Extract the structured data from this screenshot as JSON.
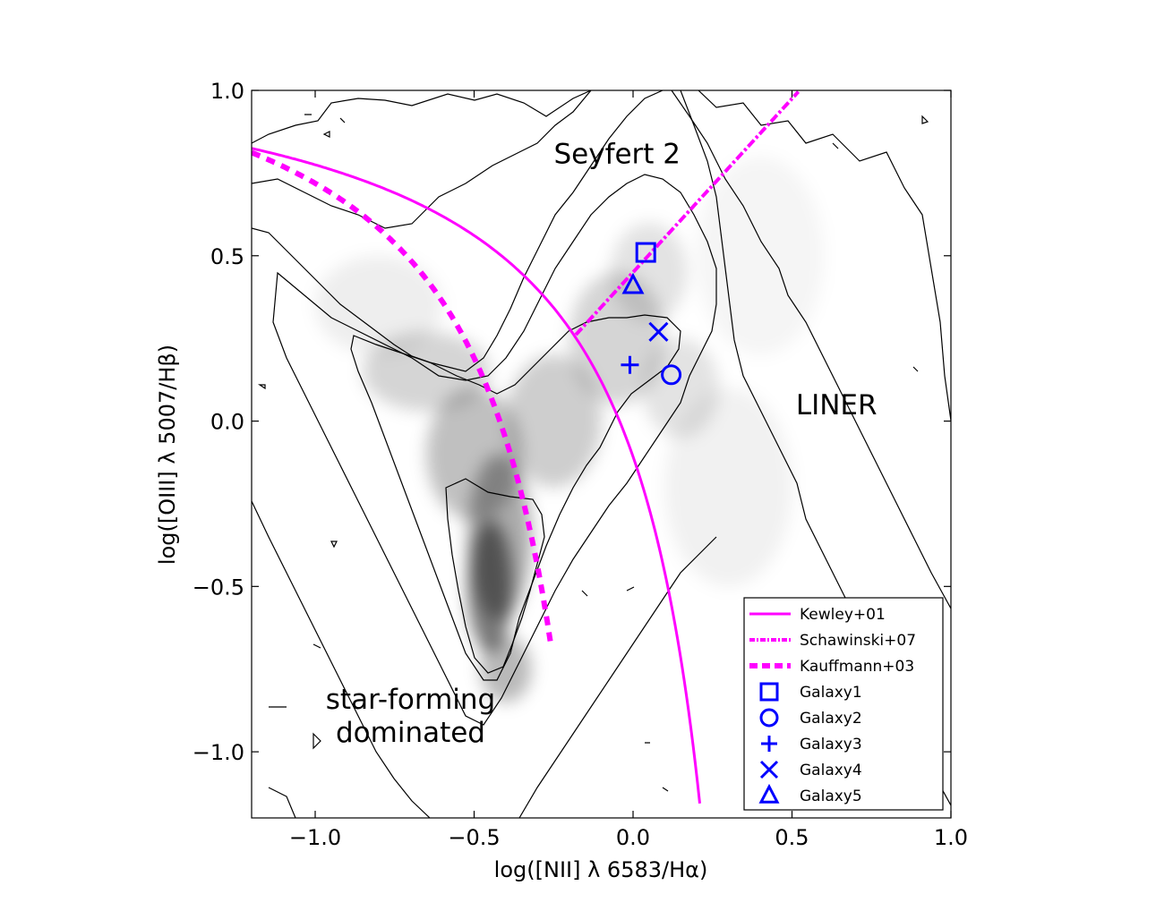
{
  "chart_data": {
    "type": "scatter",
    "xlabel": "log([NII] λ 6583/Hα)",
    "ylabel": "log([OIII] λ 5007/Hβ)",
    "xlim": [
      -1.2,
      1.0
    ],
    "ylim": [
      -1.2,
      1.0
    ],
    "x_ticks": [
      -1.0,
      -0.5,
      0.0,
      0.5,
      1.0
    ],
    "x_tick_labels": [
      "−1.0",
      "−0.5",
      "0.0",
      "0.5",
      "1.0"
    ],
    "y_ticks": [
      -1.0,
      -0.5,
      0.0,
      0.5,
      1.0
    ],
    "y_tick_labels": [
      "−1.0",
      "−0.5",
      "0.0",
      "0.5",
      "1.0"
    ],
    "grid": false,
    "background": "grayscale 2D density histogram with black contour lines",
    "region_labels": [
      {
        "text": "Seyfert 2",
        "x": -0.05,
        "y": 0.78
      },
      {
        "text": "LINER",
        "x": 0.64,
        "y": 0.02
      },
      {
        "text": "star-forming",
        "x": -0.7,
        "y": -0.87
      },
      {
        "text": "dominated",
        "x": -0.7,
        "y": -0.97
      }
    ],
    "curves": [
      {
        "name": "Kewley+01",
        "style": "solid",
        "color": "#ff00ff",
        "formula": "0.61/(x-0.47)+1.19",
        "x_range": [
          -1.2,
          0.21
        ]
      },
      {
        "name": "Schawinski+07",
        "style": "dash-dot",
        "color": "#ff00ff",
        "formula": "1.05*x+0.45",
        "x_range": [
          -0.18,
          0.52
        ]
      },
      {
        "name": "Kauffmann+03",
        "style": "dashed",
        "color": "#ff00ff",
        "formula": "0.61/(x-0.05)+1.3",
        "x_range": [
          -1.2,
          -0.26
        ]
      }
    ],
    "series": [
      {
        "name": "Galaxy1",
        "marker": "square",
        "color": "#0000ff",
        "x": 0.04,
        "y": 0.51
      },
      {
        "name": "Galaxy2",
        "marker": "circle",
        "color": "#0000ff",
        "x": 0.12,
        "y": 0.14
      },
      {
        "name": "Galaxy3",
        "marker": "plus",
        "color": "#0000ff",
        "x": -0.01,
        "y": 0.17
      },
      {
        "name": "Galaxy4",
        "marker": "x",
        "color": "#0000ff",
        "x": 0.08,
        "y": 0.27
      },
      {
        "name": "Galaxy5",
        "marker": "triangle",
        "color": "#0000ff",
        "x": 0.0,
        "y": 0.41
      }
    ],
    "legend": {
      "placement": "lower-right",
      "entries": [
        "Kewley+01",
        "Schawinski+07",
        "Kauffmann+03",
        "Galaxy1",
        "Galaxy2",
        "Galaxy3",
        "Galaxy4",
        "Galaxy5"
      ]
    }
  }
}
